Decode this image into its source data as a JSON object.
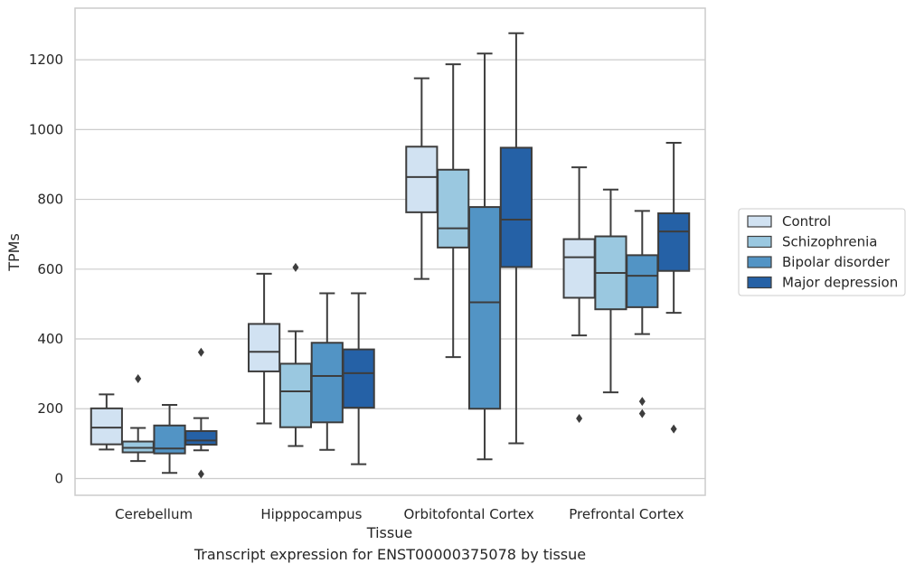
{
  "caption": "Transcript expression for ENST00000375078 by tissue",
  "chart_data": {
    "type": "box",
    "xlabel": "Tissue",
    "ylabel": "TPMs",
    "ylim": [
      -48,
      1348
    ],
    "yticks": [
      0,
      200,
      400,
      600,
      800,
      1000,
      1200
    ],
    "grid": true,
    "legend_position": "right",
    "categories": [
      "Cerebellum",
      "Hipppocampus",
      "Orbitofontal Cortex",
      "Prefrontal Cortex"
    ],
    "series": [
      {
        "name": "Control",
        "color": "#d1e2f2",
        "boxes": [
          {
            "whisker_low": 83,
            "q1": 98,
            "median": 146,
            "q3": 201,
            "whisker_high": 241,
            "outliers": []
          },
          {
            "whisker_low": 158,
            "q1": 307,
            "median": 363,
            "q3": 443,
            "whisker_high": 587,
            "outliers": []
          },
          {
            "whisker_low": 572,
            "q1": 763,
            "median": 864,
            "q3": 951,
            "whisker_high": 1147,
            "outliers": []
          },
          {
            "whisker_low": 410,
            "q1": 518,
            "median": 634,
            "q3": 686,
            "whisker_high": 892,
            "outliers": [
              172
            ]
          }
        ]
      },
      {
        "name": "Schizophrenia",
        "color": "#9ac8e0",
        "boxes": [
          {
            "whisker_low": 50,
            "q1": 75,
            "median": 88,
            "q3": 106,
            "whisker_high": 145,
            "outliers": [
              286
            ]
          },
          {
            "whisker_low": 93,
            "q1": 147,
            "median": 250,
            "q3": 329,
            "whisker_high": 422,
            "outliers": [
              605
            ]
          },
          {
            "whisker_low": 348,
            "q1": 662,
            "median": 717,
            "q3": 885,
            "whisker_high": 1187,
            "outliers": []
          },
          {
            "whisker_low": 247,
            "q1": 485,
            "median": 589,
            "q3": 694,
            "whisker_high": 828,
            "outliers": []
          }
        ]
      },
      {
        "name": "Bipolar disorder",
        "color": "#5294c5",
        "boxes": [
          {
            "whisker_low": 16,
            "q1": 72,
            "median": 86,
            "q3": 152,
            "whisker_high": 211,
            "outliers": []
          },
          {
            "whisker_low": 82,
            "q1": 161,
            "median": 294,
            "q3": 389,
            "whisker_high": 531,
            "outliers": []
          },
          {
            "whisker_low": 55,
            "q1": 200,
            "median": 505,
            "q3": 778,
            "whisker_high": 1218,
            "outliers": []
          },
          {
            "whisker_low": 414,
            "q1": 491,
            "median": 581,
            "q3": 640,
            "whisker_high": 767,
            "outliers": [
              221,
              186
            ]
          }
        ]
      },
      {
        "name": "Major depression",
        "color": "#2561a6",
        "boxes": [
          {
            "whisker_low": 81,
            "q1": 97,
            "median": 109,
            "q3": 136,
            "whisker_high": 173,
            "outliers": [
              13,
              362
            ]
          },
          {
            "whisker_low": 41,
            "q1": 203,
            "median": 302,
            "q3": 370,
            "whisker_high": 531,
            "outliers": []
          },
          {
            "whisker_low": 101,
            "q1": 606,
            "median": 742,
            "q3": 948,
            "whisker_high": 1276,
            "outliers": []
          },
          {
            "whisker_low": 475,
            "q1": 595,
            "median": 708,
            "q3": 760,
            "whisker_high": 962,
            "outliers": [
              142
            ]
          }
        ]
      }
    ]
  }
}
